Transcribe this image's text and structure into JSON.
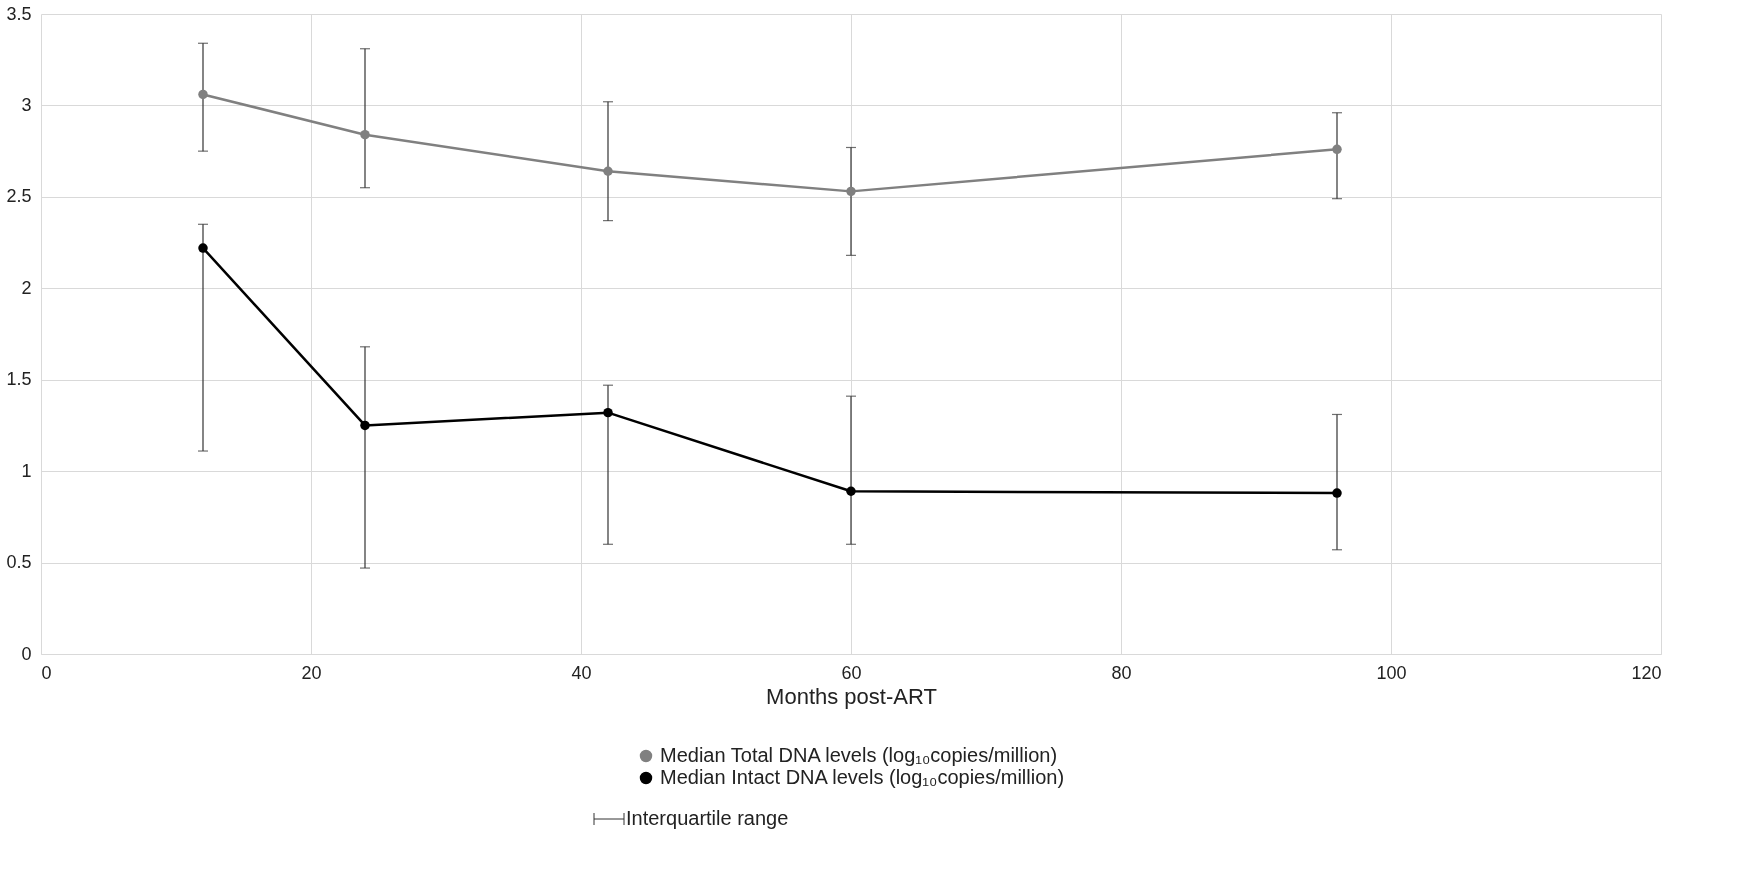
{
  "chart_data": {
    "type": "line",
    "xlabel": "Months post-ART",
    "x": [
      12,
      24,
      42,
      60,
      96
    ],
    "series": [
      {
        "name": "Median Total DNA levels (log₁₀copies/million)",
        "color": "#808080",
        "values": [
          3.06,
          2.84,
          2.64,
          2.53,
          2.76
        ],
        "errors": [
          [
            2.75,
            3.34
          ],
          [
            2.55,
            3.31
          ],
          [
            2.37,
            3.02
          ],
          [
            2.18,
            2.77
          ],
          [
            2.49,
            2.96
          ]
        ]
      },
      {
        "name": "Median Intact DNA levels (log₁₀copies/million)",
        "color": "#000000",
        "values": [
          2.22,
          1.25,
          1.32,
          0.89,
          0.88
        ],
        "errors": [
          [
            1.11,
            2.35
          ],
          [
            0.47,
            1.68
          ],
          [
            0.6,
            1.47
          ],
          [
            0.6,
            1.41
          ],
          [
            0.57,
            1.31
          ]
        ]
      }
    ],
    "xlim": [
      0,
      120
    ],
    "xticks": [
      0,
      20,
      40,
      60,
      80,
      100,
      120
    ],
    "ylim": [
      0,
      3.5
    ],
    "yticks": [
      0,
      0.5,
      1,
      1.5,
      2,
      2.5,
      3,
      3.5
    ],
    "grid": true,
    "legend": "bottom",
    "marker": "circle",
    "line_style": "solid",
    "annotations": [
      "Interquartile range"
    ]
  }
}
